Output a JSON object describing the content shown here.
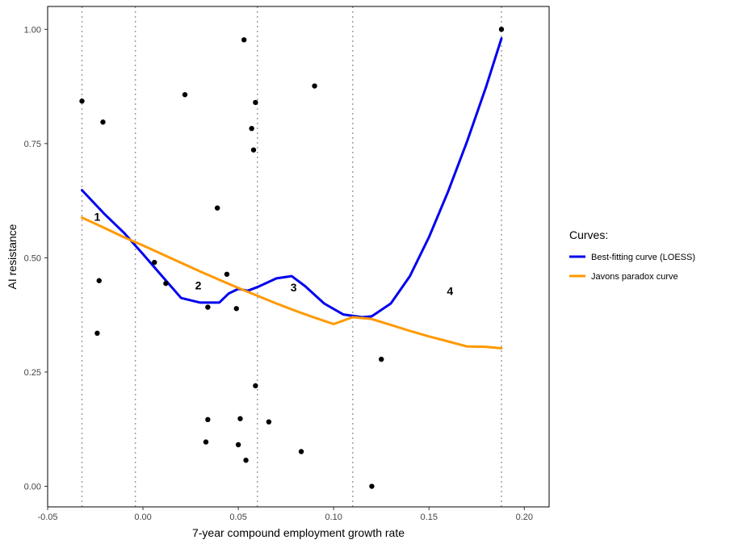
{
  "chart_data": {
    "type": "scatter",
    "xlabel": "7-year compound employment growth rate",
    "ylabel": "AI resistance",
    "xlim": [
      -0.05,
      0.213
    ],
    "ylim": [
      -0.045,
      1.05
    ],
    "x_ticks": [
      -0.05,
      0.0,
      0.05,
      0.1,
      0.15,
      0.2
    ],
    "x_tick_labels": [
      "-0.05",
      "0.00",
      "0.05",
      "0.10",
      "0.15",
      "0.20"
    ],
    "y_ticks": [
      0.0,
      0.25,
      0.5,
      0.75,
      1.0
    ],
    "y_tick_labels": [
      "0.00",
      "0.25",
      "0.50",
      "0.75",
      "1.00"
    ],
    "grid": false,
    "vlines": [
      -0.032,
      -0.004,
      0.06,
      0.11,
      0.188
    ],
    "points": [
      {
        "x": -0.032,
        "y": 0.843
      },
      {
        "x": -0.021,
        "y": 0.797
      },
      {
        "x": -0.023,
        "y": 0.45
      },
      {
        "x": -0.024,
        "y": 0.335
      },
      {
        "x": 0.022,
        "y": 0.857
      },
      {
        "x": 0.053,
        "y": 0.977
      },
      {
        "x": 0.059,
        "y": 0.84
      },
      {
        "x": 0.057,
        "y": 0.783
      },
      {
        "x": 0.058,
        "y": 0.736
      },
      {
        "x": 0.09,
        "y": 0.876
      },
      {
        "x": 0.039,
        "y": 0.609
      },
      {
        "x": 0.006,
        "y": 0.49
      },
      {
        "x": 0.012,
        "y": 0.444
      },
      {
        "x": 0.044,
        "y": 0.464
      },
      {
        "x": 0.034,
        "y": 0.392
      },
      {
        "x": 0.049,
        "y": 0.389
      },
      {
        "x": 0.125,
        "y": 0.278
      },
      {
        "x": 0.059,
        "y": 0.22
      },
      {
        "x": 0.034,
        "y": 0.146
      },
      {
        "x": 0.051,
        "y": 0.148
      },
      {
        "x": 0.066,
        "y": 0.141
      },
      {
        "x": 0.033,
        "y": 0.097
      },
      {
        "x": 0.05,
        "y": 0.091
      },
      {
        "x": 0.083,
        "y": 0.076
      },
      {
        "x": 0.054,
        "y": 0.057
      },
      {
        "x": 0.12,
        "y": 0.0
      },
      {
        "x": 0.188,
        "y": 1.0
      }
    ],
    "series": [
      {
        "name": "Best-fitting curve (LOESS)",
        "color": "#0000ee",
        "x": [
          -0.032,
          -0.02,
          -0.01,
          0.0,
          0.01,
          0.02,
          0.03,
          0.04,
          0.045,
          0.05,
          0.055,
          0.06,
          0.07,
          0.078,
          0.085,
          0.095,
          0.105,
          0.115,
          0.12,
          0.13,
          0.14,
          0.15,
          0.16,
          0.17,
          0.18,
          0.188
        ],
        "y": [
          0.648,
          0.595,
          0.555,
          0.508,
          0.46,
          0.412,
          0.402,
          0.402,
          0.422,
          0.432,
          0.428,
          0.436,
          0.455,
          0.46,
          0.438,
          0.4,
          0.376,
          0.37,
          0.372,
          0.4,
          0.46,
          0.545,
          0.645,
          0.755,
          0.875,
          0.98
        ]
      },
      {
        "name": "Javons paradox curve",
        "color": "#ff9900",
        "x": [
          -0.032,
          -0.02,
          -0.01,
          0.0,
          0.01,
          0.02,
          0.03,
          0.04,
          0.05,
          0.06,
          0.07,
          0.08,
          0.09,
          0.1,
          0.11,
          0.12,
          0.13,
          0.14,
          0.15,
          0.16,
          0.17,
          0.18,
          0.188
        ],
        "y": [
          0.588,
          0.565,
          0.545,
          0.527,
          0.508,
          0.489,
          0.47,
          0.452,
          0.434,
          0.417,
          0.4,
          0.384,
          0.369,
          0.355,
          0.37,
          0.366,
          0.353,
          0.34,
          0.328,
          0.317,
          0.306,
          0.305,
          0.302
        ]
      }
    ],
    "annotations": [
      {
        "text": "1",
        "x": -0.024,
        "y": 0.59
      },
      {
        "text": "2",
        "x": 0.029,
        "y": 0.44
      },
      {
        "text": "3",
        "x": 0.079,
        "y": 0.435
      },
      {
        "text": "4",
        "x": 0.161,
        "y": 0.427
      }
    ],
    "legend": {
      "title": "Curves:",
      "position": "right",
      "entries": [
        {
          "label": "Best-fitting curve (LOESS)",
          "color": "#0000ee"
        },
        {
          "label": "Javons paradox curve",
          "color": "#ff9900"
        }
      ]
    }
  }
}
